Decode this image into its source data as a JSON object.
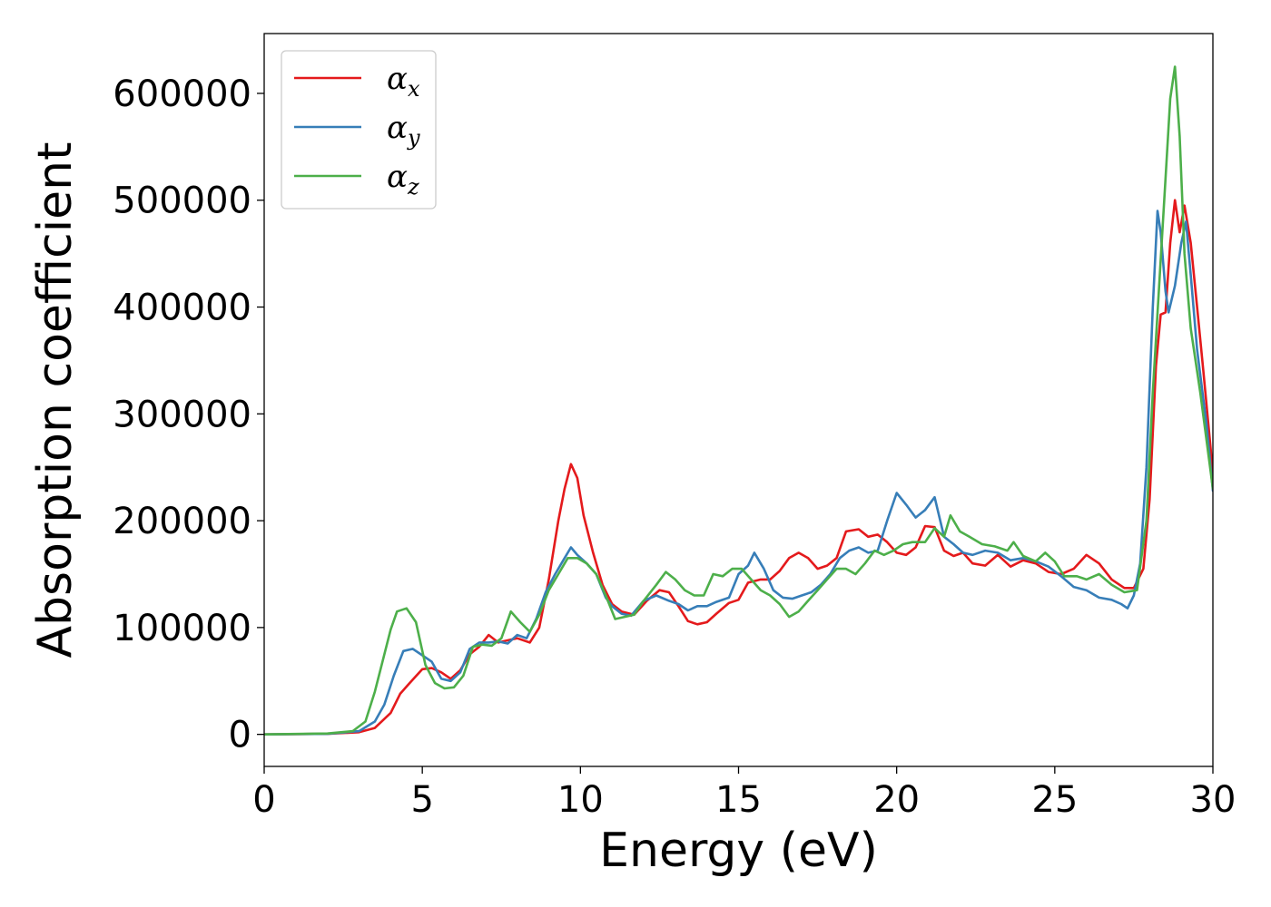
{
  "chart_data": {
    "type": "line",
    "xlabel": "Energy (eV)",
    "ylabel": "Absorption coefficient",
    "xlim": [
      0,
      30
    ],
    "ylim": [
      -30000,
      656000
    ],
    "x_ticks": [
      0,
      5,
      10,
      15,
      20,
      25,
      30
    ],
    "y_ticks": [
      0,
      100000,
      200000,
      300000,
      400000,
      500000,
      600000
    ],
    "grid": false,
    "legend_position": "top-left",
    "series": [
      {
        "name": "αx",
        "symbol": "α",
        "subscript": "x",
        "color": "#e41a1c",
        "points": [
          [
            0,
            0
          ],
          [
            2,
            500
          ],
          [
            3,
            2000
          ],
          [
            3.5,
            6000
          ],
          [
            4,
            20000
          ],
          [
            4.3,
            38000
          ],
          [
            4.6,
            48000
          ],
          [
            5,
            61000
          ],
          [
            5.3,
            62000
          ],
          [
            5.6,
            58000
          ],
          [
            5.9,
            52000
          ],
          [
            6.2,
            60000
          ],
          [
            6.5,
            75000
          ],
          [
            6.8,
            82000
          ],
          [
            7.1,
            93000
          ],
          [
            7.4,
            86000
          ],
          [
            7.7,
            88000
          ],
          [
            8,
            90000
          ],
          [
            8.4,
            86000
          ],
          [
            8.7,
            100000
          ],
          [
            9,
            145000
          ],
          [
            9.3,
            200000
          ],
          [
            9.5,
            230000
          ],
          [
            9.7,
            253000
          ],
          [
            9.9,
            240000
          ],
          [
            10.1,
            205000
          ],
          [
            10.4,
            170000
          ],
          [
            10.7,
            140000
          ],
          [
            11,
            122000
          ],
          [
            11.3,
            115000
          ],
          [
            11.7,
            112000
          ],
          [
            12.1,
            125000
          ],
          [
            12.5,
            135000
          ],
          [
            12.8,
            133000
          ],
          [
            13.1,
            120000
          ],
          [
            13.4,
            106000
          ],
          [
            13.7,
            103000
          ],
          [
            14,
            105000
          ],
          [
            14.3,
            113000
          ],
          [
            14.7,
            123000
          ],
          [
            15,
            126000
          ],
          [
            15.3,
            142000
          ],
          [
            15.7,
            145000
          ],
          [
            16,
            145000
          ],
          [
            16.3,
            153000
          ],
          [
            16.6,
            165000
          ],
          [
            16.9,
            170000
          ],
          [
            17.2,
            165000
          ],
          [
            17.5,
            155000
          ],
          [
            17.8,
            158000
          ],
          [
            18.1,
            165000
          ],
          [
            18.4,
            190000
          ],
          [
            18.8,
            192000
          ],
          [
            19.1,
            185000
          ],
          [
            19.4,
            187000
          ],
          [
            19.7,
            180000
          ],
          [
            20,
            170000
          ],
          [
            20.3,
            168000
          ],
          [
            20.6,
            175000
          ],
          [
            20.9,
            195000
          ],
          [
            21.2,
            194000
          ],
          [
            21.5,
            172000
          ],
          [
            21.8,
            167000
          ],
          [
            22.1,
            170000
          ],
          [
            22.4,
            160000
          ],
          [
            22.8,
            158000
          ],
          [
            23.2,
            168000
          ],
          [
            23.6,
            157000
          ],
          [
            24,
            163000
          ],
          [
            24.4,
            160000
          ],
          [
            24.8,
            152000
          ],
          [
            25.2,
            150000
          ],
          [
            25.6,
            155000
          ],
          [
            26,
            168000
          ],
          [
            26.4,
            160000
          ],
          [
            26.8,
            145000
          ],
          [
            27.2,
            137000
          ],
          [
            27.5,
            137000
          ],
          [
            27.8,
            155000
          ],
          [
            28,
            220000
          ],
          [
            28.2,
            345000
          ],
          [
            28.35,
            393000
          ],
          [
            28.5,
            395000
          ],
          [
            28.65,
            460000
          ],
          [
            28.8,
            500000
          ],
          [
            28.95,
            470000
          ],
          [
            29.1,
            495000
          ],
          [
            29.3,
            460000
          ],
          [
            29.5,
            400000
          ],
          [
            29.7,
            340000
          ],
          [
            30,
            245000
          ]
        ]
      },
      {
        "name": "αy",
        "symbol": "α",
        "subscript": "y",
        "color": "#377eb8",
        "points": [
          [
            0,
            0
          ],
          [
            2,
            500
          ],
          [
            3,
            3000
          ],
          [
            3.5,
            12000
          ],
          [
            3.8,
            28000
          ],
          [
            4.1,
            55000
          ],
          [
            4.4,
            78000
          ],
          [
            4.7,
            80000
          ],
          [
            5,
            74000
          ],
          [
            5.3,
            68000
          ],
          [
            5.6,
            52000
          ],
          [
            5.9,
            50000
          ],
          [
            6.2,
            58000
          ],
          [
            6.5,
            80000
          ],
          [
            6.8,
            86000
          ],
          [
            7.1,
            86000
          ],
          [
            7.4,
            87000
          ],
          [
            7.7,
            85000
          ],
          [
            8,
            93000
          ],
          [
            8.3,
            90000
          ],
          [
            8.6,
            108000
          ],
          [
            8.9,
            133000
          ],
          [
            9.2,
            150000
          ],
          [
            9.5,
            165000
          ],
          [
            9.7,
            175000
          ],
          [
            9.9,
            168000
          ],
          [
            10.2,
            160000
          ],
          [
            10.5,
            150000
          ],
          [
            10.8,
            128000
          ],
          [
            11,
            120000
          ],
          [
            11.3,
            113000
          ],
          [
            11.6,
            111000
          ],
          [
            12,
            125000
          ],
          [
            12.4,
            130000
          ],
          [
            12.8,
            125000
          ],
          [
            13.1,
            122000
          ],
          [
            13.4,
            116000
          ],
          [
            13.7,
            120000
          ],
          [
            14,
            120000
          ],
          [
            14.3,
            124000
          ],
          [
            14.7,
            128000
          ],
          [
            15,
            150000
          ],
          [
            15.3,
            158000
          ],
          [
            15.5,
            170000
          ],
          [
            15.8,
            155000
          ],
          [
            16.1,
            135000
          ],
          [
            16.4,
            128000
          ],
          [
            16.7,
            127000
          ],
          [
            17,
            130000
          ],
          [
            17.3,
            133000
          ],
          [
            17.6,
            140000
          ],
          [
            17.9,
            150000
          ],
          [
            18.2,
            165000
          ],
          [
            18.5,
            172000
          ],
          [
            18.8,
            175000
          ],
          [
            19.1,
            170000
          ],
          [
            19.4,
            172000
          ],
          [
            19.7,
            200000
          ],
          [
            20,
            226000
          ],
          [
            20.3,
            215000
          ],
          [
            20.6,
            203000
          ],
          [
            20.9,
            210000
          ],
          [
            21.2,
            222000
          ],
          [
            21.5,
            185000
          ],
          [
            21.8,
            178000
          ],
          [
            22.1,
            170000
          ],
          [
            22.4,
            168000
          ],
          [
            22.8,
            172000
          ],
          [
            23.2,
            170000
          ],
          [
            23.6,
            163000
          ],
          [
            24,
            165000
          ],
          [
            24.4,
            162000
          ],
          [
            24.8,
            157000
          ],
          [
            25.2,
            148000
          ],
          [
            25.6,
            138000
          ],
          [
            26,
            135000
          ],
          [
            26.4,
            128000
          ],
          [
            26.8,
            126000
          ],
          [
            27.1,
            122000
          ],
          [
            27.3,
            118000
          ],
          [
            27.5,
            130000
          ],
          [
            27.7,
            160000
          ],
          [
            27.9,
            250000
          ],
          [
            28.1,
            400000
          ],
          [
            28.25,
            490000
          ],
          [
            28.35,
            470000
          ],
          [
            28.5,
            415000
          ],
          [
            28.6,
            395000
          ],
          [
            28.8,
            420000
          ],
          [
            29,
            460000
          ],
          [
            29.15,
            480000
          ],
          [
            29.3,
            430000
          ],
          [
            29.5,
            360000
          ],
          [
            29.8,
            290000
          ],
          [
            30,
            228000
          ]
        ]
      },
      {
        "name": "αz",
        "symbol": "α",
        "subscript": "z",
        "color": "#4daf4a",
        "points": [
          [
            0,
            0
          ],
          [
            2,
            800
          ],
          [
            2.8,
            3000
          ],
          [
            3.2,
            12000
          ],
          [
            3.5,
            40000
          ],
          [
            3.8,
            75000
          ],
          [
            4,
            98000
          ],
          [
            4.2,
            115000
          ],
          [
            4.5,
            118000
          ],
          [
            4.8,
            105000
          ],
          [
            5.1,
            65000
          ],
          [
            5.4,
            48000
          ],
          [
            5.7,
            43000
          ],
          [
            6,
            44000
          ],
          [
            6.3,
            55000
          ],
          [
            6.6,
            82000
          ],
          [
            6.9,
            84000
          ],
          [
            7.2,
            83000
          ],
          [
            7.5,
            90000
          ],
          [
            7.8,
            115000
          ],
          [
            8.1,
            105000
          ],
          [
            8.4,
            96000
          ],
          [
            8.7,
            112000
          ],
          [
            9,
            135000
          ],
          [
            9.3,
            150000
          ],
          [
            9.6,
            165000
          ],
          [
            9.9,
            165000
          ],
          [
            10.2,
            160000
          ],
          [
            10.5,
            150000
          ],
          [
            10.8,
            130000
          ],
          [
            11.1,
            108000
          ],
          [
            11.4,
            110000
          ],
          [
            11.7,
            112000
          ],
          [
            12,
            125000
          ],
          [
            12.4,
            140000
          ],
          [
            12.7,
            152000
          ],
          [
            13,
            145000
          ],
          [
            13.3,
            135000
          ],
          [
            13.6,
            130000
          ],
          [
            13.9,
            130000
          ],
          [
            14.2,
            150000
          ],
          [
            14.5,
            148000
          ],
          [
            14.8,
            155000
          ],
          [
            15.1,
            155000
          ],
          [
            15.4,
            145000
          ],
          [
            15.7,
            135000
          ],
          [
            16,
            130000
          ],
          [
            16.3,
            122000
          ],
          [
            16.6,
            110000
          ],
          [
            16.9,
            115000
          ],
          [
            17.2,
            125000
          ],
          [
            17.5,
            135000
          ],
          [
            17.8,
            145000
          ],
          [
            18.1,
            155000
          ],
          [
            18.4,
            155000
          ],
          [
            18.7,
            150000
          ],
          [
            19,
            160000
          ],
          [
            19.3,
            172000
          ],
          [
            19.6,
            168000
          ],
          [
            19.9,
            172000
          ],
          [
            20.2,
            178000
          ],
          [
            20.5,
            180000
          ],
          [
            20.9,
            180000
          ],
          [
            21.2,
            193000
          ],
          [
            21.5,
            185000
          ],
          [
            21.7,
            205000
          ],
          [
            22,
            190000
          ],
          [
            22.3,
            185000
          ],
          [
            22.7,
            178000
          ],
          [
            23.1,
            176000
          ],
          [
            23.5,
            172000
          ],
          [
            23.7,
            180000
          ],
          [
            24,
            167000
          ],
          [
            24.4,
            162000
          ],
          [
            24.7,
            170000
          ],
          [
            25,
            162000
          ],
          [
            25.3,
            148000
          ],
          [
            25.7,
            148000
          ],
          [
            26,
            145000
          ],
          [
            26.4,
            150000
          ],
          [
            26.8,
            140000
          ],
          [
            27.2,
            133000
          ],
          [
            27.6,
            135000
          ],
          [
            27.9,
            200000
          ],
          [
            28.1,
            320000
          ],
          [
            28.3,
            420000
          ],
          [
            28.5,
            520000
          ],
          [
            28.65,
            595000
          ],
          [
            28.8,
            625000
          ],
          [
            28.95,
            560000
          ],
          [
            29.1,
            450000
          ],
          [
            29.3,
            380000
          ],
          [
            29.6,
            320000
          ],
          [
            30,
            230000
          ]
        ]
      }
    ]
  }
}
